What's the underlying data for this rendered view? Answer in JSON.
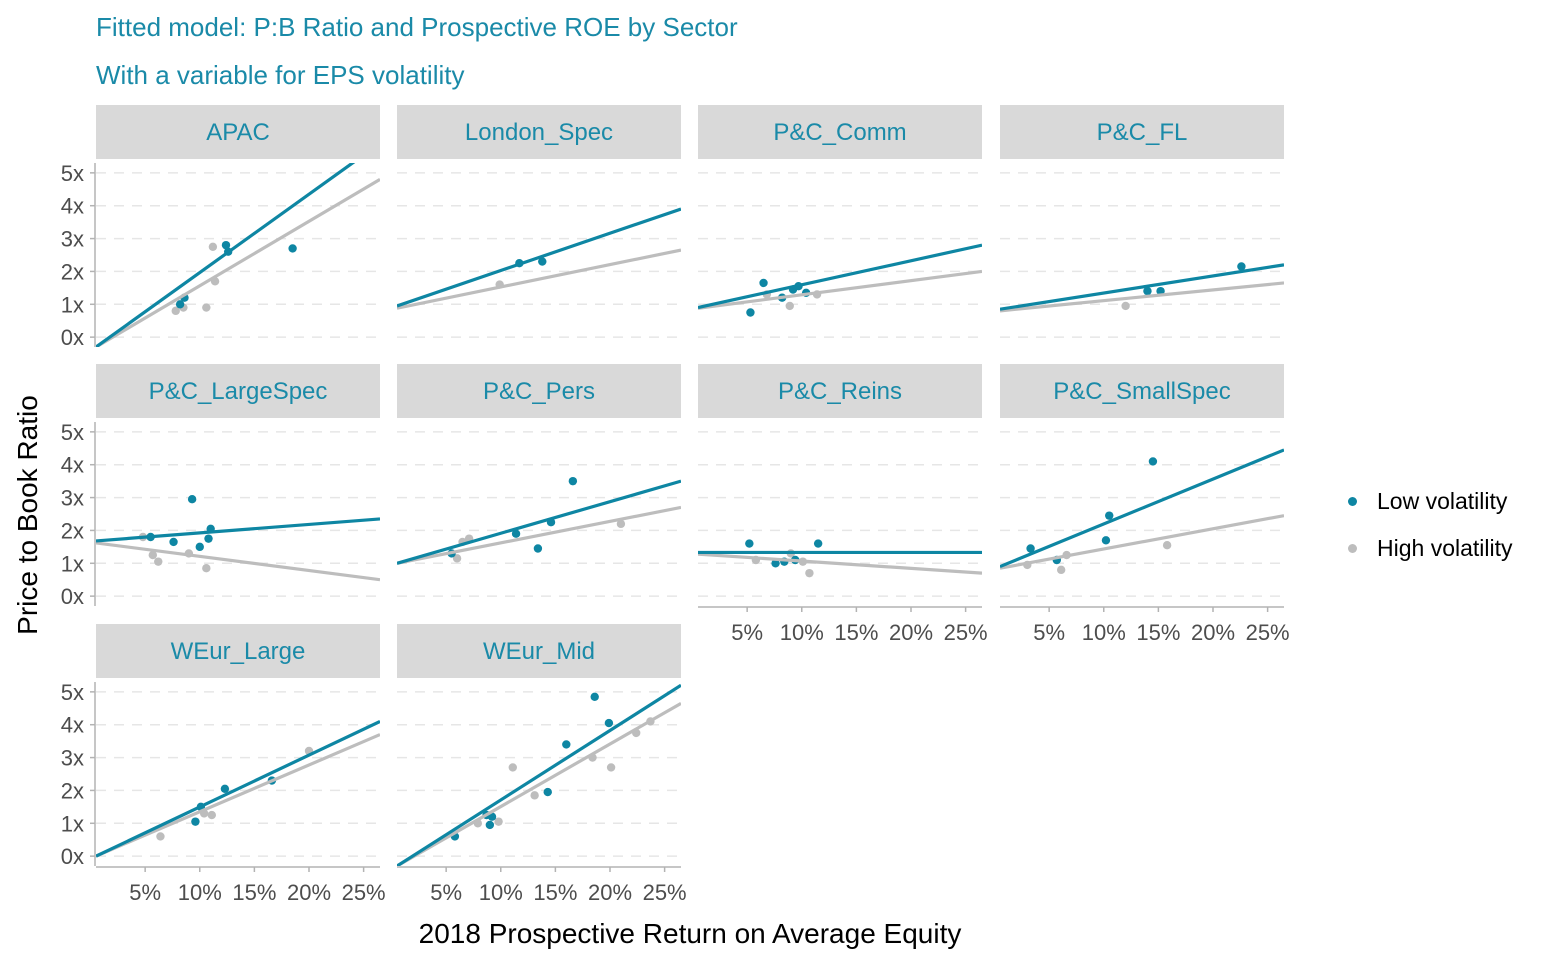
{
  "chart_data": {
    "type": "scatter",
    "title": "Fitted model: P:B Ratio and Prospective ROE by Sector",
    "subtitle": "With a variable for EPS volatility",
    "xlabel": "2018 Prospective Return on Average Equity",
    "ylabel": "Price to Book Ratio",
    "xlim": [
      0.5,
      26.5
    ],
    "ylim": [
      -0.3,
      5.3
    ],
    "x_ticks": [
      "5%",
      "10%",
      "15%",
      "20%",
      "25%"
    ],
    "x_tick_values": [
      5,
      10,
      15,
      20,
      25
    ],
    "y_ticks": [
      "0x",
      "1x",
      "2x",
      "3x",
      "4x",
      "5x"
    ],
    "y_tick_values": [
      0,
      1,
      2,
      3,
      4,
      5
    ],
    "grid": "horizontal dashed",
    "legend_position": "right",
    "series": [
      {
        "name": "Low volatility",
        "color": "#0e86a3"
      },
      {
        "name": "High volatility",
        "color": "#bdbdbd"
      }
    ],
    "facets": [
      {
        "label": "APAC",
        "lines": {
          "low": [
            [
              0.5,
              -0.3
            ],
            [
              26.5,
              5.9
            ]
          ],
          "high": [
            [
              0.5,
              -0.3
            ],
            [
              26.5,
              4.8
            ]
          ]
        },
        "low": [
          [
            8.2,
            1.0
          ],
          [
            8.6,
            1.2
          ],
          [
            12.4,
            2.8
          ],
          [
            12.6,
            2.6
          ],
          [
            18.5,
            2.7
          ]
        ],
        "high": [
          [
            7.8,
            0.8
          ],
          [
            8.5,
            0.9
          ],
          [
            10.6,
            0.9
          ],
          [
            11.2,
            2.75
          ],
          [
            11.4,
            1.7
          ]
        ]
      },
      {
        "label": "London_Spec",
        "lines": {
          "low": [
            [
              0.5,
              0.95
            ],
            [
              26.5,
              3.9
            ]
          ],
          "high": [
            [
              0.5,
              0.88
            ],
            [
              26.5,
              2.65
            ]
          ]
        },
        "low": [
          [
            11.7,
            2.25
          ],
          [
            13.8,
            2.3
          ]
        ],
        "high": [
          [
            9.9,
            1.6
          ]
        ]
      },
      {
        "label": "P&C_Comm",
        "lines": {
          "low": [
            [
              0.5,
              0.9
            ],
            [
              26.5,
              2.8
            ]
          ],
          "high": [
            [
              0.5,
              0.88
            ],
            [
              26.5,
              2.0
            ]
          ]
        },
        "low": [
          [
            5.3,
            0.75
          ],
          [
            6.5,
            1.65
          ],
          [
            8.2,
            1.2
          ],
          [
            9.2,
            1.45
          ],
          [
            9.7,
            1.55
          ],
          [
            10.4,
            1.35
          ]
        ],
        "high": [
          [
            6.8,
            1.3
          ],
          [
            8.9,
            0.95
          ],
          [
            11.4,
            1.3
          ]
        ]
      },
      {
        "label": "P&C_FL",
        "lines": {
          "low": [
            [
              0.5,
              0.85
            ],
            [
              26.5,
              2.2
            ]
          ],
          "high": [
            [
              0.5,
              0.8
            ],
            [
              26.5,
              1.65
            ]
          ]
        },
        "low": [
          [
            14.0,
            1.4
          ],
          [
            15.2,
            1.4
          ],
          [
            22.6,
            2.15
          ]
        ],
        "high": [
          [
            12.0,
            0.95
          ]
        ]
      },
      {
        "label": "P&C_LargeSpec",
        "lines": {
          "low": [
            [
              0.5,
              1.68
            ],
            [
              26.5,
              2.35
            ]
          ],
          "high": [
            [
              0.5,
              1.62
            ],
            [
              26.5,
              0.5
            ]
          ]
        },
        "low": [
          [
            5.5,
            1.8
          ],
          [
            7.6,
            1.65
          ],
          [
            9.3,
            2.95
          ],
          [
            10.0,
            1.5
          ],
          [
            10.8,
            1.75
          ],
          [
            11.0,
            2.05
          ]
        ],
        "high": [
          [
            4.8,
            1.8
          ],
          [
            5.7,
            1.25
          ],
          [
            6.2,
            1.05
          ],
          [
            9.0,
            1.3
          ],
          [
            10.6,
            0.85
          ]
        ]
      },
      {
        "label": "P&C_Pers",
        "lines": {
          "low": [
            [
              0.5,
              1.0
            ],
            [
              26.5,
              3.5
            ]
          ],
          "high": [
            [
              0.5,
              1.0
            ],
            [
              26.5,
              2.7
            ]
          ]
        },
        "low": [
          [
            5.5,
            1.3
          ],
          [
            11.4,
            1.9
          ],
          [
            13.4,
            1.45
          ],
          [
            14.6,
            2.25
          ],
          [
            16.6,
            3.5
          ]
        ],
        "high": [
          [
            6.0,
            1.15
          ],
          [
            6.5,
            1.65
          ],
          [
            7.1,
            1.75
          ],
          [
            21.0,
            2.2
          ]
        ]
      },
      {
        "label": "P&C_Reins",
        "lines": {
          "low": [
            [
              0.5,
              1.33
            ],
            [
              26.5,
              1.33
            ]
          ],
          "high": [
            [
              0.5,
              1.28
            ],
            [
              26.5,
              0.7
            ]
          ]
        },
        "low": [
          [
            5.2,
            1.6
          ],
          [
            7.6,
            1.0
          ],
          [
            8.4,
            1.05
          ],
          [
            9.4,
            1.1
          ],
          [
            11.5,
            1.6
          ]
        ],
        "high": [
          [
            5.8,
            1.1
          ],
          [
            9.0,
            1.3
          ],
          [
            10.1,
            1.05
          ],
          [
            10.7,
            0.7
          ]
        ]
      },
      {
        "label": "P&C_SmallSpec",
        "lines": {
          "low": [
            [
              0.5,
              0.9
            ],
            [
              26.5,
              4.45
            ]
          ],
          "high": [
            [
              0.5,
              0.85
            ],
            [
              26.5,
              2.45
            ]
          ]
        },
        "low": [
          [
            3.3,
            1.45
          ],
          [
            5.7,
            1.1
          ],
          [
            10.2,
            1.7
          ],
          [
            10.5,
            2.45
          ],
          [
            14.5,
            4.1
          ]
        ],
        "high": [
          [
            3.0,
            0.95
          ],
          [
            6.1,
            0.8
          ],
          [
            6.6,
            1.25
          ],
          [
            15.8,
            1.55
          ]
        ]
      },
      {
        "label": "WEur_Large",
        "lines": {
          "low": [
            [
              0.5,
              0.0
            ],
            [
              26.5,
              4.1
            ]
          ],
          "high": [
            [
              0.5,
              0.0
            ],
            [
              26.5,
              3.7
            ]
          ]
        },
        "low": [
          [
            9.6,
            1.05
          ],
          [
            10.1,
            1.5
          ],
          [
            12.3,
            2.05
          ],
          [
            16.6,
            2.3
          ]
        ],
        "high": [
          [
            6.4,
            0.6
          ],
          [
            10.4,
            1.3
          ],
          [
            11.1,
            1.25
          ],
          [
            20.0,
            3.2
          ]
        ]
      },
      {
        "label": "WEur_Mid",
        "lines": {
          "low": [
            [
              0.5,
              -0.3
            ],
            [
              26.5,
              5.2
            ]
          ],
          "high": [
            [
              0.5,
              -0.3
            ],
            [
              26.5,
              4.65
            ]
          ]
        },
        "low": [
          [
            5.8,
            0.6
          ],
          [
            8.7,
            1.25
          ],
          [
            9.0,
            0.95
          ],
          [
            9.2,
            1.2
          ],
          [
            14.3,
            1.95
          ],
          [
            16.0,
            3.4
          ],
          [
            18.6,
            4.85
          ],
          [
            19.9,
            4.05
          ]
        ],
        "high": [
          [
            7.9,
            1.0
          ],
          [
            9.8,
            1.05
          ],
          [
            11.1,
            2.7
          ],
          [
            13.1,
            1.85
          ],
          [
            18.4,
            3.0
          ],
          [
            20.1,
            2.7
          ],
          [
            22.4,
            3.75
          ],
          [
            23.7,
            4.1
          ]
        ]
      }
    ]
  }
}
